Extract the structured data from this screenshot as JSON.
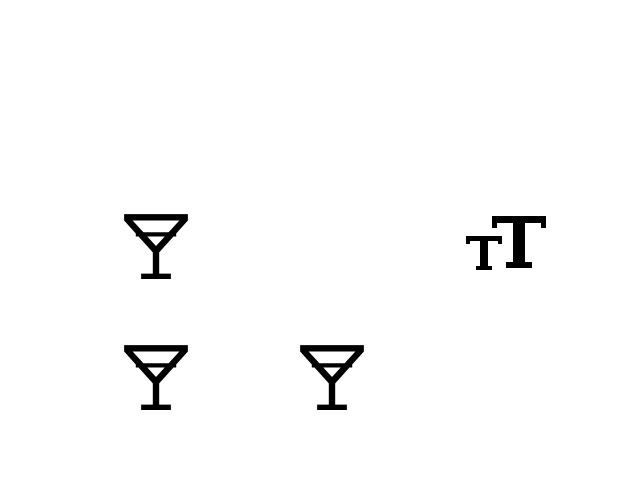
{
  "icons": [
    {
      "name": "martini-glass-icon",
      "color": "#000000"
    },
    {
      "name": "martini-glass-icon",
      "color": "#000000"
    },
    {
      "name": "martini-glass-icon",
      "color": "#000000"
    },
    {
      "name": "text-size-icon",
      "color": "#000000"
    }
  ],
  "colors": {
    "background": "#ffffff",
    "icon": "#000000"
  }
}
